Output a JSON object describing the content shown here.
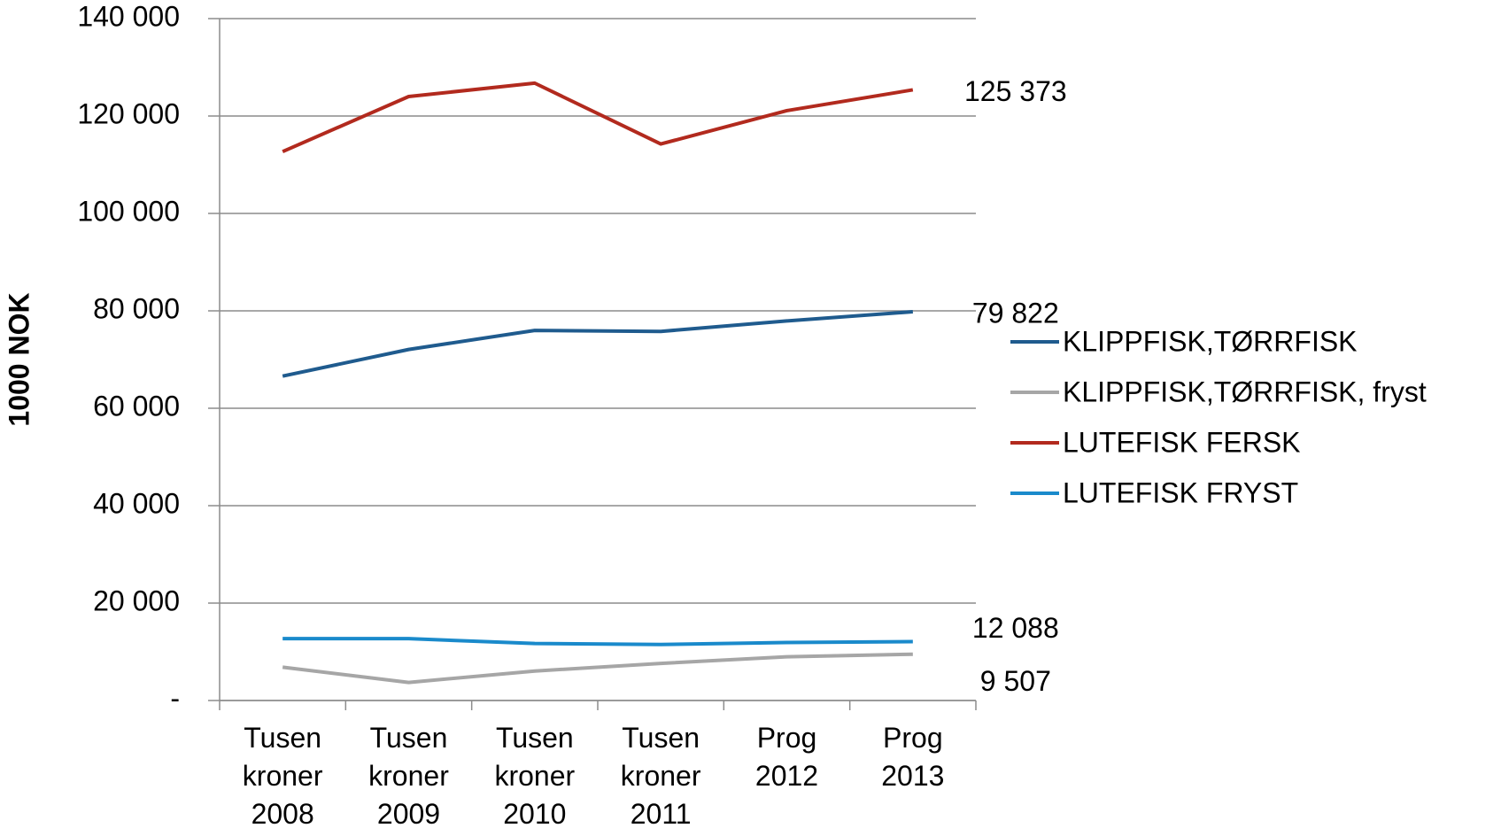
{
  "chart_data": {
    "type": "line",
    "y_label": "1000 NOK",
    "categories": [
      "Tusen kroner 2008",
      "Tusen kroner 2009",
      "Tusen kroner 2010",
      "Tusen kroner 2011",
      "Prog 2012",
      "Prog 2013"
    ],
    "series": [
      {
        "name": "KLIPPFISK,TØRRFISK",
        "color": "#1f5b8e",
        "values": [
          66600,
          72070,
          75980,
          75780,
          77930,
          79822
        ],
        "value_labels": [
          null,
          null,
          null,
          null,
          null,
          "79 822"
        ]
      },
      {
        "name": "KLIPPFISK,TØRRFISK, fryst",
        "color": "#a6a6a6",
        "values": [
          6840,
          3710,
          6050,
          7620,
          8980,
          9507
        ],
        "value_labels": [
          null,
          null,
          null,
          null,
          null,
          "9 507"
        ]
      },
      {
        "name": "LUTEFISK FERSK",
        "color": "#b22a1e",
        "values": [
          112700,
          124000,
          126750,
          114260,
          121100,
          125373
        ],
        "value_labels": [
          null,
          null,
          null,
          null,
          null,
          "125 373"
        ]
      },
      {
        "name": "LUTEFISK FRYST",
        "color": "#1a8acb",
        "values": [
          12700,
          12700,
          11700,
          11500,
          11900,
          12088
        ],
        "value_labels": [
          null,
          null,
          null,
          null,
          null,
          "12 088"
        ]
      }
    ],
    "ylim": [
      0,
      140000
    ],
    "yticks": [
      {
        "value": 0,
        "label": "-"
      },
      {
        "value": 20000,
        "label": "20 000"
      },
      {
        "value": 40000,
        "label": "40 000"
      },
      {
        "value": 60000,
        "label": "60 000"
      },
      {
        "value": 80000,
        "label": "80 000"
      },
      {
        "value": 100000,
        "label": "100 000"
      },
      {
        "value": 120000,
        "label": "120 000"
      },
      {
        "value": 140000,
        "label": "140 000"
      }
    ],
    "grid": true,
    "legend": "right"
  }
}
